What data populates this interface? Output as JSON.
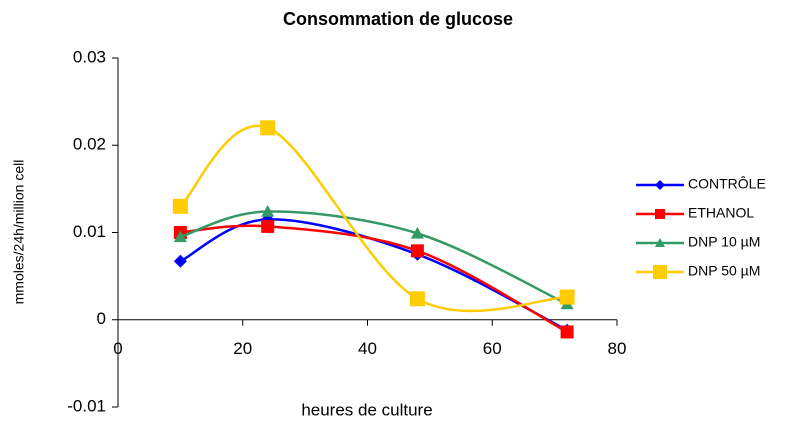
{
  "chart_data": {
    "type": "line",
    "title": "Consommation de glucose",
    "x_label": "heures de culture",
    "y_label": "mmoles/24h/million cell",
    "x": [
      10,
      24,
      48,
      72
    ],
    "series": [
      {
        "name": "CONTRÔLE",
        "color": "#0000ff",
        "marker": "diamond",
        "values": [
          0.0067,
          0.0115,
          0.0075,
          -0.0012
        ]
      },
      {
        "name": "ETHANOL",
        "color": "#ff0000",
        "marker": "square",
        "values": [
          0.01,
          0.0107,
          0.0079,
          -0.0014
        ]
      },
      {
        "name": "DNP 10 µM",
        "color": "#339966",
        "marker": "triangle",
        "values": [
          0.0095,
          0.0124,
          0.0099,
          0.0018
        ]
      },
      {
        "name": "DNP 50 µM",
        "color": "#ffcc00",
        "marker": "square",
        "values": [
          0.013,
          0.022,
          0.0024,
          0.0026
        ]
      }
    ],
    "xlim": [
      0,
      80
    ],
    "xticks": [
      0,
      20,
      40,
      60,
      80
    ],
    "ylim": [
      -0.01,
      0.03
    ],
    "yticks": [
      -0.01,
      0,
      0.01,
      0.02,
      0.03
    ],
    "smooth": true,
    "legend": "right"
  }
}
